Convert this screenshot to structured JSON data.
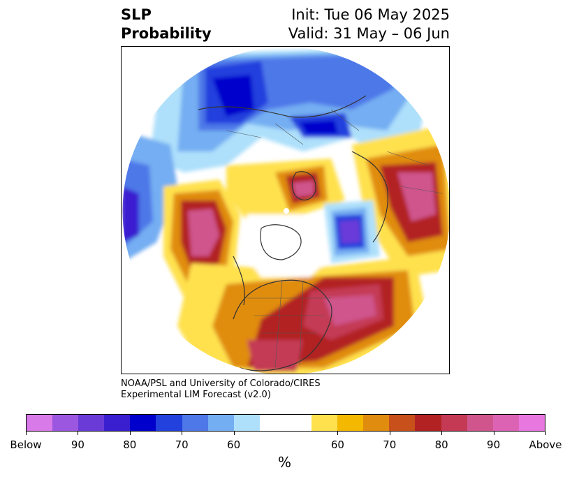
{
  "title": {
    "left_line1": "SLP",
    "left_line2": "Probability",
    "right_line1": "Init: Tue 06 May 2025",
    "right_line2": "Valid: 31 May – 06 Jun"
  },
  "credit": {
    "line1": "NOAA/PSL and University of Colorado/CIRES",
    "line2": "Experimental LIM Forecast (v2.0)"
  },
  "colorbar": {
    "colors": [
      "#d87ae8",
      "#9b57e0",
      "#6b3bd8",
      "#3a1fd0",
      "#0000cc",
      "#2341dd",
      "#4e78e8",
      "#74aef2",
      "#aee0fb",
      "#ffffff",
      "#ffffff",
      "#ffe14d",
      "#f5b800",
      "#e08c0e",
      "#c8501a",
      "#b22222",
      "#c43a55",
      "#cf558c",
      "#dc63b4",
      "#e877e0"
    ],
    "tick_labels": [
      "Below",
      "90",
      "80",
      "70",
      "60",
      "60",
      "70",
      "80",
      "90",
      "Above"
    ],
    "unit": "%"
  },
  "map": {
    "projection": "north-polar-stereographic",
    "variable": "SLP probability"
  }
}
